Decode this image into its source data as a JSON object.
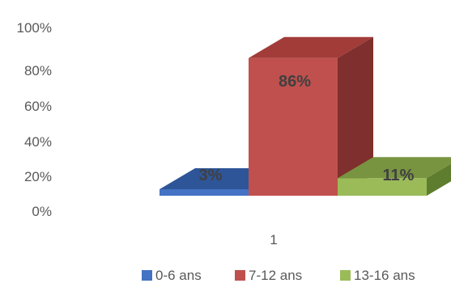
{
  "chart_data": {
    "type": "bar",
    "categories": [
      "1"
    ],
    "series": [
      {
        "name": "0-6 ans",
        "values": [
          3
        ],
        "label": "3%",
        "color": "#4472C4",
        "top_color": "#2E5597",
        "side_color": "#2E5597"
      },
      {
        "name": "7-12 ans",
        "values": [
          86
        ],
        "label": "86%",
        "color": "#C0504D",
        "top_color": "#A23C39",
        "side_color": "#7F2F2D"
      },
      {
        "name": "13-16 ans",
        "values": [
          11
        ],
        "label": "11%",
        "color": "#9BBB59",
        "top_color": "#789440",
        "side_color": "#5E7D2F"
      }
    ],
    "y_ticks": [
      "0%",
      "20%",
      "40%",
      "60%",
      "80%",
      "100%"
    ],
    "ylim": [
      0,
      100
    ],
    "legend_position": "bottom",
    "three_d": true,
    "grid": false,
    "title": "",
    "xlabel": "",
    "ylabel": ""
  }
}
